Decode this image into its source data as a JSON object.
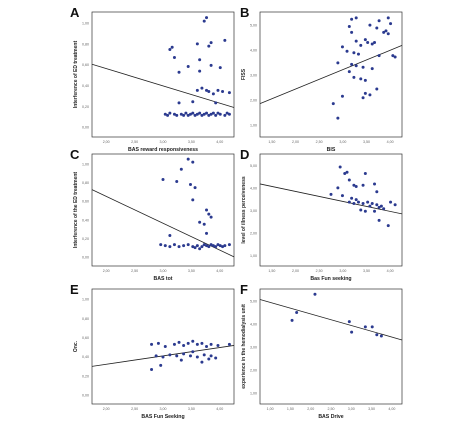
{
  "figure": {
    "panel_letters": [
      "A",
      "B",
      "C",
      "D",
      "E",
      "F"
    ]
  },
  "chart_data": [
    {
      "panel": "A",
      "type": "scatter",
      "xlabel": "BAS reward responsiveness",
      "ylabel": "Interference of ED treatment",
      "x_ticks": [
        "2,00",
        "2,50",
        "3,00",
        "3,50",
        "4,00"
      ],
      "y_ticks": [
        "0,00",
        "0,20",
        "0,40",
        "0,60",
        "0,80",
        "1,00"
      ],
      "xlim": [
        1.0,
        4.1
      ],
      "ylim": [
        0.0,
        1.1
      ],
      "grid": false,
      "fit_line": [
        [
          1.0,
          0.64
        ],
        [
          4.1,
          0.26
        ]
      ],
      "points": [
        [
          3.5,
          1.05
        ],
        [
          3.45,
          1.02
        ],
        [
          2.7,
          0.77
        ],
        [
          2.75,
          0.79
        ],
        [
          2.8,
          0.7
        ],
        [
          3.3,
          0.82
        ],
        [
          3.6,
          0.83
        ],
        [
          3.55,
          0.8
        ],
        [
          3.9,
          0.85
        ],
        [
          3.35,
          0.68
        ],
        [
          3.6,
          0.63
        ],
        [
          2.9,
          0.57
        ],
        [
          3.1,
          0.62
        ],
        [
          3.8,
          0.61
        ],
        [
          3.35,
          0.58
        ],
        [
          3.3,
          0.41
        ],
        [
          3.4,
          0.43
        ],
        [
          3.5,
          0.41
        ],
        [
          3.55,
          0.4
        ],
        [
          3.65,
          0.38
        ],
        [
          3.75,
          0.41
        ],
        [
          3.85,
          0.4
        ],
        [
          4.0,
          0.39
        ],
        [
          2.9,
          0.3
        ],
        [
          3.2,
          0.31
        ],
        [
          3.7,
          0.3
        ],
        [
          2.6,
          0.2
        ],
        [
          2.7,
          0.21
        ],
        [
          2.8,
          0.2
        ],
        [
          2.85,
          0.19
        ],
        [
          2.95,
          0.2
        ],
        [
          3.0,
          0.19
        ],
        [
          3.05,
          0.21
        ],
        [
          3.15,
          0.2
        ],
        [
          3.25,
          0.19
        ],
        [
          3.3,
          0.2
        ],
        [
          3.35,
          0.21
        ],
        [
          3.4,
          0.19
        ],
        [
          3.45,
          0.2
        ],
        [
          3.5,
          0.21
        ],
        [
          3.55,
          0.19
        ],
        [
          3.6,
          0.2
        ],
        [
          3.65,
          0.21
        ],
        [
          3.7,
          0.19
        ],
        [
          3.8,
          0.2
        ],
        [
          3.9,
          0.19
        ],
        [
          4.0,
          0.2
        ],
        [
          2.65,
          0.19
        ],
        [
          3.2,
          0.21
        ],
        [
          3.1,
          0.19
        ],
        [
          3.75,
          0.21
        ],
        [
          3.95,
          0.21
        ]
      ]
    },
    {
      "panel": "B",
      "type": "scatter",
      "xlabel": "BIS",
      "ylabel": "FISS",
      "x_ticks": [
        "1,50",
        "2,00",
        "2,50",
        "3,00",
        "3,50",
        "4,00"
      ],
      "y_ticks": [
        "1,00",
        "2,00",
        "3,00",
        "4,00",
        "5,00"
      ],
      "xlim": [
        1.0,
        4.1
      ],
      "ylim": [
        1.0,
        5.3
      ],
      "grid": false,
      "fit_line": [
        [
          1.0,
          2.15
        ],
        [
          4.1,
          4.15
        ]
      ],
      "points": [
        [
          3.0,
          5.05
        ],
        [
          3.1,
          5.1
        ],
        [
          3.6,
          5.0
        ],
        [
          3.8,
          5.1
        ],
        [
          3.85,
          4.9
        ],
        [
          2.95,
          4.8
        ],
        [
          3.4,
          4.85
        ],
        [
          3.55,
          4.75
        ],
        [
          3.7,
          4.6
        ],
        [
          3.75,
          4.65
        ],
        [
          3.8,
          4.55
        ],
        [
          3.0,
          4.6
        ],
        [
          3.3,
          4.35
        ],
        [
          3.1,
          4.3
        ],
        [
          3.35,
          4.25
        ],
        [
          3.45,
          4.2
        ],
        [
          3.5,
          4.25
        ],
        [
          3.2,
          4.15
        ],
        [
          2.8,
          4.1
        ],
        [
          2.9,
          3.95
        ],
        [
          3.05,
          3.9
        ],
        [
          3.15,
          3.85
        ],
        [
          3.6,
          3.8
        ],
        [
          3.9,
          3.8
        ],
        [
          3.95,
          3.75
        ],
        [
          2.7,
          3.55
        ],
        [
          3.0,
          3.5
        ],
        [
          3.1,
          3.45
        ],
        [
          3.25,
          3.4
        ],
        [
          3.45,
          3.35
        ],
        [
          2.95,
          3.25
        ],
        [
          3.05,
          3.05
        ],
        [
          3.2,
          3.0
        ],
        [
          3.3,
          2.95
        ],
        [
          3.55,
          2.65
        ],
        [
          2.8,
          2.4
        ],
        [
          3.3,
          2.5
        ],
        [
          3.4,
          2.45
        ],
        [
          2.6,
          2.15
        ],
        [
          3.25,
          2.35
        ],
        [
          2.7,
          1.65
        ]
      ]
    },
    {
      "panel": "C",
      "type": "scatter",
      "xlabel": "BAS tot",
      "ylabel": "Interference of the ED treatment",
      "x_ticks": [
        "2,00",
        "2,50",
        "3,00",
        "3,50",
        "4,00"
      ],
      "y_ticks": [
        "0,00",
        "0,20",
        "0,40",
        "0,60",
        "0,80",
        "1,00"
      ],
      "xlim": [
        1.0,
        4.1
      ],
      "ylim": [
        0.0,
        1.1
      ],
      "grid": false,
      "fit_line": [
        [
          1.0,
          0.75
        ],
        [
          4.1,
          0.09
        ]
      ],
      "points": [
        [
          3.1,
          1.05
        ],
        [
          3.2,
          1.02
        ],
        [
          2.95,
          0.95
        ],
        [
          2.55,
          0.85
        ],
        [
          2.85,
          0.83
        ],
        [
          3.15,
          0.8
        ],
        [
          3.25,
          0.77
        ],
        [
          3.2,
          0.65
        ],
        [
          3.5,
          0.55
        ],
        [
          3.55,
          0.51
        ],
        [
          3.6,
          0.48
        ],
        [
          3.35,
          0.43
        ],
        [
          3.45,
          0.41
        ],
        [
          2.7,
          0.3
        ],
        [
          3.5,
          0.32
        ],
        [
          2.5,
          0.21
        ],
        [
          2.6,
          0.2
        ],
        [
          2.7,
          0.19
        ],
        [
          2.8,
          0.21
        ],
        [
          2.9,
          0.19
        ],
        [
          3.0,
          0.2
        ],
        [
          3.1,
          0.21
        ],
        [
          3.2,
          0.19
        ],
        [
          3.3,
          0.2
        ],
        [
          3.4,
          0.19
        ],
        [
          3.45,
          0.21
        ],
        [
          3.5,
          0.2
        ],
        [
          3.55,
          0.19
        ],
        [
          3.6,
          0.21
        ],
        [
          3.65,
          0.2
        ],
        [
          3.7,
          0.19
        ],
        [
          3.75,
          0.21
        ],
        [
          3.8,
          0.2
        ],
        [
          3.85,
          0.19
        ],
        [
          3.9,
          0.2
        ],
        [
          4.0,
          0.21
        ],
        [
          3.25,
          0.18
        ],
        [
          3.35,
          0.17
        ]
      ]
    },
    {
      "panel": "D",
      "type": "scatter",
      "xlabel": "Bas Fun seeking",
      "ylabel": "level of illness perceiveness",
      "x_ticks": [
        "1,50",
        "2,00",
        "2,50",
        "3,00",
        "3,50",
        "4,00"
      ],
      "y_ticks": [
        "1,00",
        "2,00",
        "3,00",
        "4,00",
        "5,00"
      ],
      "xlim": [
        1.0,
        4.1
      ],
      "ylim": [
        1.0,
        5.3
      ],
      "grid": false,
      "fit_line": [
        [
          1.0,
          4.15
        ],
        [
          4.1,
          3.0
        ]
      ],
      "points": [
        [
          2.75,
          4.8
        ],
        [
          2.85,
          4.55
        ],
        [
          2.9,
          4.6
        ],
        [
          2.95,
          4.3
        ],
        [
          3.05,
          4.1
        ],
        [
          3.1,
          4.05
        ],
        [
          2.7,
          4.0
        ],
        [
          3.25,
          4.1
        ],
        [
          3.5,
          4.15
        ],
        [
          3.3,
          4.55
        ],
        [
          3.55,
          3.85
        ],
        [
          2.55,
          3.75
        ],
        [
          2.8,
          3.7
        ],
        [
          3.0,
          3.6
        ],
        [
          3.1,
          3.55
        ],
        [
          2.95,
          3.45
        ],
        [
          3.05,
          3.4
        ],
        [
          3.15,
          3.45
        ],
        [
          3.25,
          3.4
        ],
        [
          3.35,
          3.45
        ],
        [
          3.4,
          3.3
        ],
        [
          3.45,
          3.4
        ],
        [
          3.55,
          3.35
        ],
        [
          3.6,
          3.25
        ],
        [
          3.65,
          3.3
        ],
        [
          3.7,
          3.2
        ],
        [
          3.2,
          3.15
        ],
        [
          3.3,
          3.1
        ],
        [
          3.5,
          3.1
        ],
        [
          3.85,
          3.45
        ],
        [
          3.95,
          3.35
        ],
        [
          3.8,
          2.55
        ],
        [
          3.6,
          2.75
        ]
      ]
    },
    {
      "panel": "E",
      "type": "scatter",
      "xlabel": "BAS Fun Seeking",
      "ylabel": "Onc.",
      "x_ticks": [
        "2,00",
        "2,50",
        "3,00",
        "3,50",
        "4,00"
      ],
      "y_ticks": [
        "0,00",
        "0,20",
        "0,40",
        "0,60",
        "0,80",
        "1,00"
      ],
      "xlim": [
        1.0,
        4.1
      ],
      "ylim": [
        0.0,
        1.1
      ],
      "grid": false,
      "fit_line": [
        [
          1.0,
          0.36
        ],
        [
          4.1,
          0.56
        ]
      ],
      "points": [
        [
          2.3,
          0.57
        ],
        [
          2.45,
          0.58
        ],
        [
          2.6,
          0.55
        ],
        [
          2.8,
          0.57
        ],
        [
          2.9,
          0.59
        ],
        [
          3.0,
          0.56
        ],
        [
          3.1,
          0.58
        ],
        [
          3.2,
          0.6
        ],
        [
          3.3,
          0.57
        ],
        [
          3.4,
          0.58
        ],
        [
          3.5,
          0.55
        ],
        [
          3.6,
          0.57
        ],
        [
          3.75,
          0.56
        ],
        [
          4.0,
          0.57
        ],
        [
          2.4,
          0.46
        ],
        [
          2.55,
          0.45
        ],
        [
          2.7,
          0.47
        ],
        [
          2.85,
          0.46
        ],
        [
          3.0,
          0.48
        ],
        [
          3.15,
          0.46
        ],
        [
          3.3,
          0.45
        ],
        [
          3.45,
          0.47
        ],
        [
          3.6,
          0.46
        ],
        [
          3.7,
          0.44
        ],
        [
          2.5,
          0.37
        ],
        [
          2.3,
          0.33
        ],
        [
          3.4,
          0.4
        ],
        [
          3.55,
          0.43
        ],
        [
          2.95,
          0.42
        ],
        [
          3.2,
          0.5
        ]
      ]
    },
    {
      "panel": "F",
      "type": "scatter",
      "xlabel": "BAS Drive",
      "ylabel": "experience in the hemodialysis unit",
      "x_ticks": [
        "1,00",
        "1,50",
        "2,00",
        "2,50",
        "3,00",
        "3,50",
        "4,00"
      ],
      "y_ticks": [
        "1,00",
        "2,00",
        "3,00",
        "4,00",
        "5,00"
      ],
      "xlim": [
        1.0,
        4.1
      ],
      "ylim": [
        1.0,
        5.4
      ],
      "grid": false,
      "fit_line": [
        [
          1.0,
          5.0
        ],
        [
          4.1,
          3.45
        ]
      ],
      "points": [
        [
          1.8,
          4.5
        ],
        [
          2.2,
          5.2
        ],
        [
          1.7,
          4.2
        ],
        [
          2.95,
          4.15
        ],
        [
          3.3,
          3.95
        ],
        [
          3.45,
          3.95
        ],
        [
          3.0,
          3.75
        ],
        [
          3.55,
          3.65
        ],
        [
          3.65,
          3.6
        ]
      ]
    }
  ],
  "colors": {
    "marker": "#2b3a8f",
    "line": "#222222",
    "axis": "#333333"
  }
}
